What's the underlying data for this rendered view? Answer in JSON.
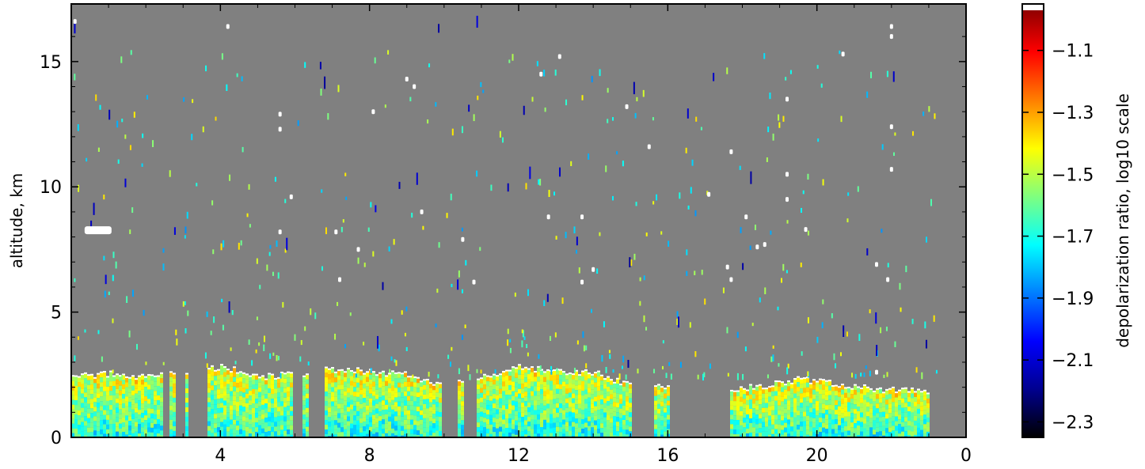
{
  "chart_data": [
    {
      "type": "heatmap",
      "title": "",
      "xlabel": "",
      "ylabel": "altitude, km",
      "xlim": [
        0,
        24
      ],
      "ylim": [
        0,
        17.3
      ],
      "x_ticks": [
        4,
        8,
        12,
        16,
        20,
        0
      ],
      "x_tick_positions_hours": [
        4,
        8,
        12,
        16,
        20,
        24
      ],
      "y_ticks": [
        0,
        5,
        10,
        15
      ],
      "background_color": "#808080",
      "contour_color": "#ffffff",
      "low_layer": {
        "top_km_by_hour": [
          {
            "x": 0.0,
            "y": 2.4
          },
          {
            "x": 1.0,
            "y": 2.5
          },
          {
            "x": 2.0,
            "y": 2.4
          },
          {
            "x": 3.0,
            "y": 2.6
          },
          {
            "x": 4.0,
            "y": 2.8
          },
          {
            "x": 5.0,
            "y": 2.4
          },
          {
            "x": 6.0,
            "y": 2.5
          },
          {
            "x": 7.0,
            "y": 2.7
          },
          {
            "x": 8.0,
            "y": 2.6
          },
          {
            "x": 9.0,
            "y": 2.5
          },
          {
            "x": 10.0,
            "y": 2.0
          },
          {
            "x": 11.0,
            "y": 2.4
          },
          {
            "x": 12.0,
            "y": 2.8
          },
          {
            "x": 13.0,
            "y": 2.6
          },
          {
            "x": 14.0,
            "y": 2.6
          },
          {
            "x": 15.0,
            "y": 2.0
          },
          {
            "x": 17.5,
            "y": 1.9
          },
          {
            "x": 18.5,
            "y": 2.0
          },
          {
            "x": 19.5,
            "y": 2.3
          },
          {
            "x": 20.5,
            "y": 2.1
          },
          {
            "x": 21.5,
            "y": 1.9
          },
          {
            "x": 23.0,
            "y": 1.8
          }
        ],
        "gaps_hours": [
          [
            2.4,
            2.6
          ],
          [
            2.75,
            3.0
          ],
          [
            3.1,
            3.6
          ],
          [
            5.9,
            6.2
          ],
          [
            6.3,
            6.8
          ],
          [
            9.9,
            10.3
          ],
          [
            10.5,
            10.8
          ],
          [
            15.0,
            15.6
          ],
          [
            16.0,
            17.6
          ],
          [
            23.0,
            24.0
          ]
        ]
      },
      "cloud_points": [
        {
          "x": 0.1,
          "y": 16.6
        },
        {
          "x": 4.2,
          "y": 16.4
        },
        {
          "x": 5.6,
          "y": 12.9
        },
        {
          "x": 5.6,
          "y": 12.3
        },
        {
          "x": 5.9,
          "y": 9.6
        },
        {
          "x": 5.6,
          "y": 8.2
        },
        {
          "x": 7.1,
          "y": 8.2
        },
        {
          "x": 7.2,
          "y": 6.3
        },
        {
          "x": 7.7,
          "y": 7.5
        },
        {
          "x": 8.1,
          "y": 13.0
        },
        {
          "x": 9.0,
          "y": 14.3
        },
        {
          "x": 9.2,
          "y": 14.0
        },
        {
          "x": 9.4,
          "y": 9.0
        },
        {
          "x": 10.5,
          "y": 7.9
        },
        {
          "x": 10.8,
          "y": 6.2
        },
        {
          "x": 13.1,
          "y": 15.2
        },
        {
          "x": 12.6,
          "y": 14.5
        },
        {
          "x": 12.8,
          "y": 8.8
        },
        {
          "x": 13.7,
          "y": 8.8
        },
        {
          "x": 14.0,
          "y": 6.7
        },
        {
          "x": 13.7,
          "y": 6.2
        },
        {
          "x": 14.9,
          "y": 13.2
        },
        {
          "x": 15.5,
          "y": 11.6
        },
        {
          "x": 17.1,
          "y": 9.7
        },
        {
          "x": 17.7,
          "y": 11.4
        },
        {
          "x": 18.1,
          "y": 8.8
        },
        {
          "x": 18.4,
          "y": 7.6
        },
        {
          "x": 18.6,
          "y": 7.7
        },
        {
          "x": 17.6,
          "y": 6.8
        },
        {
          "x": 17.7,
          "y": 6.3
        },
        {
          "x": 19.2,
          "y": 13.5
        },
        {
          "x": 19.2,
          "y": 10.5
        },
        {
          "x": 19.2,
          "y": 9.5
        },
        {
          "x": 19.7,
          "y": 8.3
        },
        {
          "x": 20.7,
          "y": 15.3
        },
        {
          "x": 22.0,
          "y": 16.4
        },
        {
          "x": 22.0,
          "y": 16.0
        },
        {
          "x": 22.0,
          "y": 12.4
        },
        {
          "x": 22.0,
          "y": 10.7
        },
        {
          "x": 21.6,
          "y": 6.9
        },
        {
          "x": 21.9,
          "y": 6.3
        },
        {
          "x": 21.6,
          "y": 2.6
        },
        {
          "x": 0.4,
          "y": 8.3
        }
      ]
    },
    {
      "type": "colorbar",
      "label": "depolarization ratio, log10 scale",
      "range": [
        -2.35,
        -0.95
      ],
      "ticks": [
        -1.1,
        -1.3,
        -1.5,
        -1.7,
        -1.9,
        -2.1,
        -2.3
      ],
      "tick_labels": [
        "−1.1",
        "−1.3",
        "−1.5",
        "−1.7",
        "−1.9",
        "−2.1",
        "−2.3"
      ],
      "colormap": [
        "#000000",
        "#00008f",
        "#0000ff",
        "#007fff",
        "#00ffff",
        "#7fff7f",
        "#ffff00",
        "#ff7f00",
        "#ff0000",
        "#800000"
      ]
    }
  ]
}
